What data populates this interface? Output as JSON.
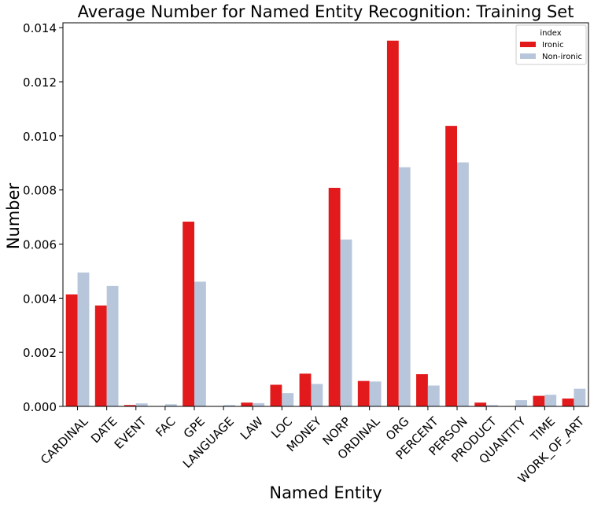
{
  "chart_data": {
    "type": "bar",
    "title": "Average Number for Named Entity Recognition: Training Set",
    "xlabel": "Named Entity",
    "ylabel": "Number",
    "ylim": [
      0,
      0.01418
    ],
    "yticks": [
      "0.000",
      "0.002",
      "0.004",
      "0.006",
      "0.008",
      "0.010",
      "0.012",
      "0.014"
    ],
    "categories": [
      "CARDINAL",
      "DATE",
      "EVENT",
      "FAC",
      "GPE",
      "LANGUAGE",
      "LAW",
      "LOC",
      "MONEY",
      "NORP",
      "ORDINAL",
      "ORG",
      "PERCENT",
      "PERSON",
      "PRODUCT",
      "QUANTITY",
      "TIME",
      "WORK_OF_ART"
    ],
    "legend": {
      "title": "index",
      "position": "top-right"
    },
    "grid": false,
    "series": [
      {
        "name": "Ironic",
        "color": "#e31a1c",
        "values": [
          0.00414,
          0.00373,
          5e-05,
          0.0,
          0.00683,
          0.0,
          0.00014,
          0.0008,
          0.00121,
          0.00808,
          0.00094,
          0.01352,
          0.00119,
          0.01037,
          0.00014,
          0.0,
          0.00039,
          0.00029
        ]
      },
      {
        "name": "Non-ironic",
        "color": "#b8c6db",
        "values": [
          0.00495,
          0.00445,
          0.00011,
          8e-05,
          0.00461,
          5e-05,
          0.00012,
          0.00049,
          0.00083,
          0.00617,
          0.00092,
          0.00884,
          0.00077,
          0.00902,
          5e-05,
          0.00023,
          0.00043,
          0.00065
        ]
      }
    ]
  }
}
